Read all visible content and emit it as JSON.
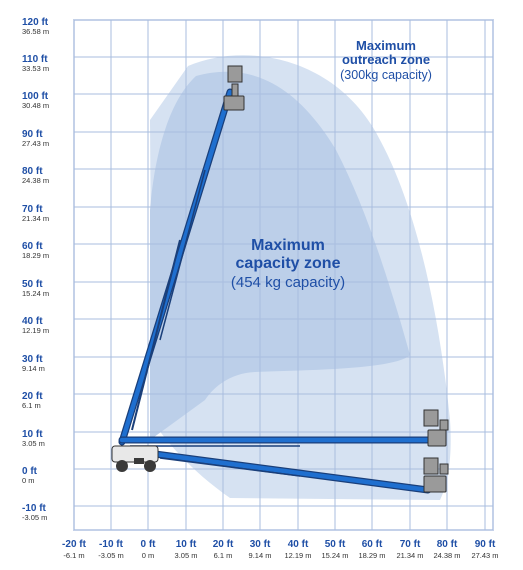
{
  "diagram": {
    "colors": {
      "background": "#ffffff",
      "grid": "#a9bddf",
      "grid_outer": "#5f7fc0",
      "zone_outreach": "#d6e2f2",
      "zone_capacity": "#bccfe9",
      "boom": "#1f6fcf",
      "boom_dark": "#1a3f7a",
      "label_blue": "#1f4fa6",
      "label_gray": "#333333",
      "machine": "#3a3a3a",
      "platform": "#9a9a9a"
    },
    "y_axis_labels": [
      {
        "ft": "120 ft",
        "m": "36.58 m"
      },
      {
        "ft": "110 ft",
        "m": "33.53 m"
      },
      {
        "ft": "100 ft",
        "m": "30.48 m"
      },
      {
        "ft": "90 ft",
        "m": "27.43 m"
      },
      {
        "ft": "80 ft",
        "m": "24.38 m"
      },
      {
        "ft": "70 ft",
        "m": "21.34 m"
      },
      {
        "ft": "60 ft",
        "m": "18.29 m"
      },
      {
        "ft": "50 ft",
        "m": "15.24 m"
      },
      {
        "ft": "40 ft",
        "m": "12.19 m"
      },
      {
        "ft": "30 ft",
        "m": "9.14 m"
      },
      {
        "ft": "20 ft",
        "m": "6.1 m"
      },
      {
        "ft": "10 ft",
        "m": "3.05 m"
      },
      {
        "ft": "0 ft",
        "m": "0 m"
      },
      {
        "ft": "-10 ft",
        "m": "-3.05 m"
      }
    ],
    "x_axis_labels": [
      {
        "ft": "-20 ft",
        "m": "-6.1 m"
      },
      {
        "ft": "-10 ft",
        "m": "-3.05 m"
      },
      {
        "ft": "0 ft",
        "m": "0 m"
      },
      {
        "ft": "10 ft",
        "m": "3.05 m"
      },
      {
        "ft": "20 ft",
        "m": "6.1 m"
      },
      {
        "ft": "30 ft",
        "m": "9.14 m"
      },
      {
        "ft": "40 ft",
        "m": "12.19 m"
      },
      {
        "ft": "50 ft",
        "m": "15.24 m"
      },
      {
        "ft": "60 ft",
        "m": "18.29 m"
      },
      {
        "ft": "70 ft",
        "m": "21.34 m"
      },
      {
        "ft": "80 ft",
        "m": "24.38 m"
      },
      {
        "ft": "90 ft",
        "m": "27.43 m"
      }
    ],
    "outreach_zone": {
      "title_line1": "Maximum",
      "title_line2": "outreach zone",
      "capacity": "(300kg capacity)"
    },
    "capacity_zone": {
      "title_line1": "Maximum",
      "title_line2": "capacity zone",
      "capacity": "(454 kg capacity)"
    }
  }
}
